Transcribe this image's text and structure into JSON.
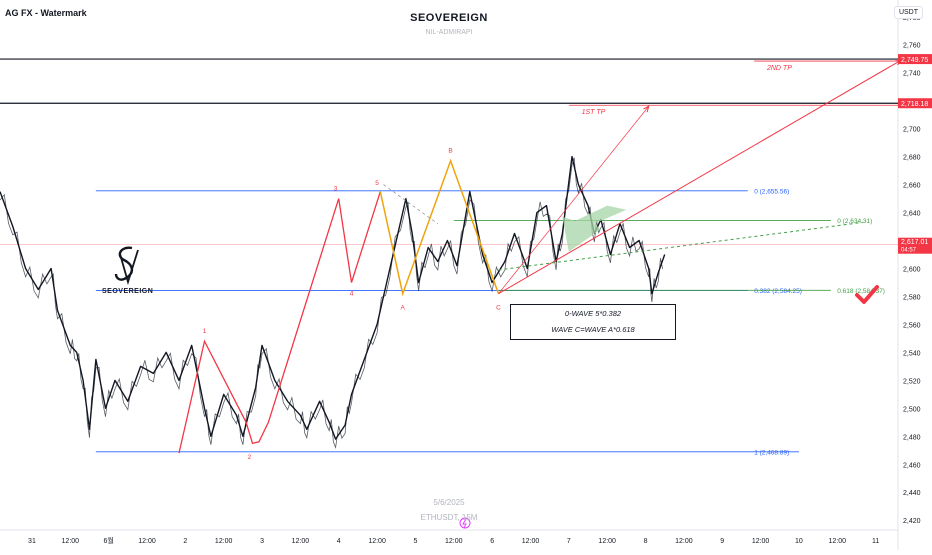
{
  "header": {
    "chart_label": "AG FX - Watermark",
    "title": "SEOVEREIGN",
    "subtitle": "NIL-ADMIRAPI",
    "currency": "USDT"
  },
  "footer": {
    "date": "5/6/2025",
    "symbol": "ETHUSDT, 15M"
  },
  "logo": {
    "text": "SEOVEREIGN"
  },
  "info_box": {
    "line1": "0-WAVE 5*0.382",
    "line2": "WAVE C=WAVE A*0.618"
  },
  "chart_data": {
    "type": "line",
    "title": "SEOVEREIGN",
    "ylim": [
      2413,
      2792
    ],
    "y_ticks": [
      2420,
      2440,
      2460,
      2480,
      2500,
      2520,
      2540,
      2560,
      2580,
      2600,
      2620,
      2640,
      2660,
      2680,
      2700,
      2720,
      2740,
      2760,
      2780
    ],
    "x_ticks": [
      "31",
      "12:00",
      "6월",
      "12:00",
      "2",
      "12:00",
      "3",
      "12:00",
      "4",
      "12:00",
      "5",
      "12:00",
      "6",
      "12:00",
      "7",
      "12:00",
      "8",
      "12:00",
      "9",
      "12:00",
      "10",
      "12:00",
      "11"
    ],
    "x_tick_times": [
      0,
      12,
      24,
      36,
      48,
      60,
      72,
      84,
      96,
      108,
      120,
      132,
      144,
      156,
      168,
      180,
      192,
      204,
      216,
      228,
      240,
      252,
      264
    ],
    "xlim": [
      -10,
      271
    ],
    "price_series": [
      [
        -10,
        2655
      ],
      [
        -6,
        2630
      ],
      [
        -2,
        2600
      ],
      [
        2,
        2585
      ],
      [
        6,
        2600
      ],
      [
        8,
        2570
      ],
      [
        12,
        2545
      ],
      [
        14,
        2540
      ],
      [
        16,
        2520
      ],
      [
        18,
        2485
      ],
      [
        20,
        2535
      ],
      [
        23,
        2500
      ],
      [
        26,
        2520
      ],
      [
        30,
        2505
      ],
      [
        34,
        2530
      ],
      [
        38,
        2525
      ],
      [
        42,
        2540
      ],
      [
        46,
        2520
      ],
      [
        50,
        2545
      ],
      [
        54,
        2500
      ],
      [
        56,
        2480
      ],
      [
        60,
        2510
      ],
      [
        64,
        2495
      ],
      [
        66,
        2480
      ],
      [
        70,
        2515
      ],
      [
        72,
        2545
      ],
      [
        76,
        2520
      ],
      [
        80,
        2505
      ],
      [
        84,
        2495
      ],
      [
        86,
        2485
      ],
      [
        90,
        2505
      ],
      [
        93,
        2490
      ],
      [
        95,
        2478
      ],
      [
        98,
        2488
      ],
      [
        100,
        2510
      ],
      [
        104,
        2535
      ],
      [
        108,
        2560
      ],
      [
        112,
        2600
      ],
      [
        117,
        2650
      ],
      [
        119,
        2625
      ],
      [
        121,
        2590
      ],
      [
        124,
        2615
      ],
      [
        127,
        2605
      ],
      [
        130,
        2620
      ],
      [
        133,
        2602
      ],
      [
        137,
        2655
      ],
      [
        141,
        2610
      ],
      [
        144,
        2590
      ],
      [
        148,
        2605
      ],
      [
        151,
        2625
      ],
      [
        155,
        2600
      ],
      [
        158,
        2640
      ],
      [
        161,
        2645
      ],
      [
        164,
        2605
      ],
      [
        166,
        2625
      ],
      [
        169,
        2680
      ],
      [
        171,
        2660
      ],
      [
        174,
        2645
      ],
      [
        176,
        2625
      ],
      [
        178,
        2635
      ],
      [
        181,
        2610
      ],
      [
        184,
        2632
      ],
      [
        187,
        2615
      ],
      [
        190,
        2620
      ],
      [
        193,
        2600
      ],
      [
        194,
        2582
      ],
      [
        196,
        2597
      ],
      [
        198,
        2610
      ]
    ],
    "wave_red": [
      [
        46,
        2468
      ],
      [
        54,
        2548
      ],
      [
        67,
        2490
      ],
      [
        69,
        2475
      ],
      [
        71,
        2476
      ],
      [
        74,
        2490
      ],
      [
        96,
        2650
      ],
      [
        100,
        2590
      ],
      [
        109,
        2655
      ]
    ],
    "wave_orange": [
      [
        109,
        2655
      ],
      [
        116,
        2582
      ],
      [
        131,
        2677
      ],
      [
        146,
        2582
      ]
    ],
    "wave_labels": [
      {
        "text": "1",
        "t": 54,
        "v": 2556
      },
      {
        "text": "2",
        "t": 68,
        "v": 2466
      },
      {
        "text": "3",
        "t": 95,
        "v": 2658
      },
      {
        "text": "4",
        "t": 100,
        "v": 2583
      },
      {
        "text": "5",
        "t": 108,
        "v": 2662
      },
      {
        "text": "A",
        "t": 116,
        "v": 2573
      },
      {
        "text": "B",
        "t": 131,
        "v": 2685
      },
      {
        "text": "C",
        "t": 146,
        "v": 2573
      }
    ],
    "fib_levels": [
      {
        "label": "0 (2,655.56)",
        "value": 2655.56,
        "color": "#2962ff",
        "from": 20,
        "to": 224,
        "label_t": 226
      },
      {
        "label": "0.382 (2,584.25)",
        "value": 2584.25,
        "color": "#2962ff",
        "from": 20,
        "to": 224,
        "label_t": 226
      },
      {
        "label": "1 (2,468.89)",
        "value": 2468.89,
        "color": "#2962ff",
        "from": 20,
        "to": 240,
        "label_t": 226
      },
      {
        "label": "0 (2,634.31)",
        "value": 2634.31,
        "color": "#43a047",
        "from": 132,
        "to": 250,
        "label_t": 252
      },
      {
        "label": "0.618 (2,584.37)",
        "value": 2584.37,
        "color": "#43a047",
        "from": 146,
        "to": 250,
        "label_t": 252
      }
    ],
    "tp_levels": [
      {
        "label": "2ND TP",
        "value": 2749.75,
        "tag": "2,749.75",
        "label_t": 230
      },
      {
        "label": "1ST TP",
        "value": 2718.18,
        "tag": "2,718.18",
        "label_t": 172
      }
    ],
    "current_price": {
      "value": 2617.01,
      "tag": "2,617.01",
      "sub": "04:57"
    },
    "projections": [
      [
        [
          146,
          2582
        ],
        [
          193,
          2716
        ]
      ],
      [
        [
          146,
          2582
        ],
        [
          272,
          2749
        ]
      ],
      [
        [
          146,
          2599
        ],
        [
          260,
          2633
        ]
      ]
    ],
    "grid": false,
    "colors": {
      "up": "#131722",
      "wave_red": "#f23645",
      "wave_orange": "#f0a30a",
      "fib_blue": "#2962ff",
      "fib_green": "#43a047",
      "tp_red": "#f23645"
    }
  }
}
